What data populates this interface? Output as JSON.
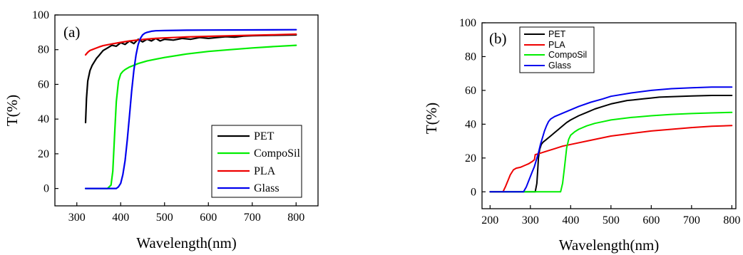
{
  "chart_data": [
    {
      "type": "line",
      "panel_label": "(a)",
      "xlabel": "Wavelength(nm)",
      "ylabel": "T(%)",
      "xlim": [
        250,
        850
      ],
      "ylim": [
        -10,
        100
      ],
      "xticks": [
        300,
        400,
        500,
        600,
        700,
        800
      ],
      "yticks": [
        0,
        20,
        40,
        60,
        80,
        100
      ],
      "grid": false,
      "legend_position": "bottom-right",
      "legend": [
        "PET",
        "CompoSil",
        "PLA",
        "Glass"
      ],
      "series": [
        {
          "name": "PET",
          "color": "#000000",
          "x": [
            320,
            322,
            325,
            330,
            335,
            340,
            345,
            350,
            355,
            360,
            370,
            380,
            390,
            400,
            410,
            420,
            430,
            440,
            450,
            460,
            470,
            480,
            490,
            500,
            520,
            540,
            560,
            580,
            600,
            620,
            640,
            660,
            680,
            700,
            750,
            800
          ],
          "y": [
            38,
            52,
            62,
            68,
            71,
            73,
            75,
            76.5,
            78,
            79.5,
            81,
            82.5,
            82,
            84,
            83,
            85,
            83.5,
            86,
            84.5,
            86,
            85,
            86.5,
            85,
            86,
            85.5,
            86.5,
            86,
            87,
            86.5,
            87,
            87.5,
            87.2,
            87.8,
            88,
            88.3,
            88.5
          ]
        },
        {
          "name": "CompoSil",
          "color": "#00ee00",
          "x": [
            320,
            370,
            378,
            382,
            386,
            390,
            395,
            400,
            405,
            410,
            420,
            440,
            460,
            480,
            500,
            550,
            600,
            650,
            700,
            750,
            800
          ],
          "y": [
            0,
            0,
            2,
            10,
            30,
            50,
            62,
            66,
            67.5,
            68.5,
            70,
            72,
            73.5,
            74.5,
            75.5,
            77.5,
            79,
            80,
            81,
            81.8,
            82.5
          ]
        },
        {
          "name": "PLA",
          "color": "#ee0000",
          "x": [
            320,
            325,
            330,
            340,
            350,
            360,
            380,
            400,
            420,
            440,
            460,
            480,
            500,
            550,
            600,
            650,
            700,
            750,
            800
          ],
          "y": [
            77,
            78.5,
            79.5,
            80.5,
            81.5,
            82.3,
            83.3,
            84.2,
            85,
            85.6,
            86.1,
            86.5,
            86.8,
            87.3,
            87.7,
            88,
            88.3,
            88.6,
            88.9
          ]
        },
        {
          "name": "Glass",
          "color": "#0000ee",
          "x": [
            320,
            390,
            395,
            400,
            405,
            410,
            415,
            420,
            425,
            430,
            435,
            440,
            445,
            450,
            455,
            460,
            470,
            480,
            500,
            550,
            600,
            700,
            800
          ],
          "y": [
            0,
            0,
            1,
            3,
            8,
            16,
            28,
            42,
            56,
            68,
            77,
            83,
            86.5,
            88.5,
            89.5,
            90,
            90.6,
            90.9,
            91,
            91.2,
            91.3,
            91.4,
            91.5
          ]
        }
      ]
    },
    {
      "type": "line",
      "panel_label": "(b)",
      "xlabel": "Wavelength(nm)",
      "ylabel": "T(%)",
      "xlim": [
        180,
        810
      ],
      "ylim": [
        -10,
        100
      ],
      "xticks": [
        200,
        300,
        400,
        500,
        600,
        700,
        800
      ],
      "yticks": [
        0,
        20,
        40,
        60,
        80,
        100
      ],
      "grid": false,
      "legend_position": "top-left",
      "legend": [
        "PET",
        "PLA",
        "CompoSil",
        "Glass"
      ],
      "series": [
        {
          "name": "PET",
          "color": "#000000",
          "x": [
            200,
            312,
            316,
            318,
            320,
            323,
            327,
            332,
            340,
            350,
            360,
            370,
            380,
            390,
            400,
            420,
            440,
            460,
            480,
            500,
            520,
            540,
            560,
            580,
            600,
            620,
            650,
            700,
            750,
            800
          ],
          "y": [
            0,
            0,
            5,
            12,
            20,
            25,
            28,
            29.5,
            31,
            33,
            35,
            37,
            39,
            41,
            42.5,
            45,
            47,
            49,
            50.5,
            52,
            53,
            54,
            54.5,
            55,
            55.5,
            56,
            56.3,
            56.7,
            57,
            57
          ]
        },
        {
          "name": "PLA",
          "color": "#ee0000",
          "x": [
            200,
            232,
            238,
            245,
            250,
            258,
            265,
            275,
            285,
            295,
            305,
            310,
            312,
            320,
            340,
            360,
            380,
            400,
            450,
            500,
            550,
            600,
            650,
            700,
            750,
            800
          ],
          "y": [
            0,
            0,
            3,
            7,
            10,
            13,
            14,
            14.5,
            15.5,
            16.5,
            18,
            19,
            22,
            22.5,
            24,
            25.5,
            27,
            28,
            30.5,
            33,
            34.5,
            36,
            37,
            38,
            38.8,
            39.2
          ]
        },
        {
          "name": "CompoSil",
          "color": "#00ee00",
          "x": [
            200,
            375,
            380,
            385,
            390,
            395,
            400,
            410,
            420,
            440,
            460,
            480,
            500,
            550,
            600,
            650,
            700,
            750,
            800
          ],
          "y": [
            0,
            0,
            5,
            15,
            26,
            31,
            33.5,
            35.5,
            37,
            39,
            40.5,
            41.5,
            42.5,
            44,
            45,
            45.8,
            46.3,
            46.7,
            47
          ]
        },
        {
          "name": "Glass",
          "color": "#0000ee",
          "x": [
            200,
            283,
            290,
            295,
            300,
            305,
            310,
            315,
            320,
            325,
            330,
            335,
            340,
            345,
            350,
            360,
            370,
            380,
            400,
            420,
            450,
            480,
            500,
            550,
            600,
            650,
            700,
            750,
            800
          ],
          "y": [
            0,
            0,
            3,
            6,
            9,
            12,
            15,
            19,
            23,
            28,
            32,
            36,
            39,
            41.5,
            43,
            44.5,
            45.5,
            46.5,
            48.5,
            50.5,
            53,
            55,
            56.5,
            58.5,
            60,
            61,
            61.5,
            62,
            62
          ]
        }
      ]
    }
  ]
}
